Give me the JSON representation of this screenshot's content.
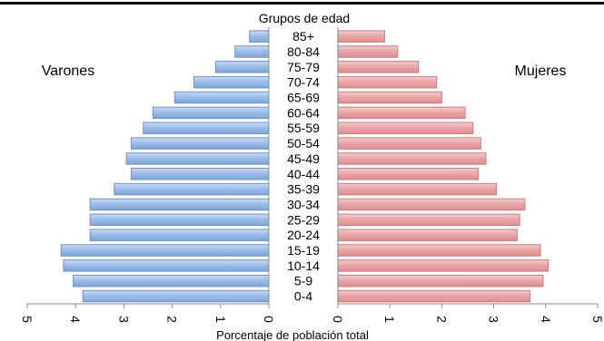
{
  "chart_data": {
    "type": "bar",
    "title": "Grupos de edad",
    "xlabel": "Porcentaje de población total",
    "age_groups": [
      "0-4",
      "5-9",
      "10-14",
      "15-19",
      "20-24",
      "25-29",
      "30-34",
      "35-39",
      "40-44",
      "45-49",
      "50-54",
      "55-59",
      "60-64",
      "65-69",
      "70-74",
      "75-79",
      "80-84",
      "85+"
    ],
    "series": [
      {
        "name": "Varones",
        "side": "left",
        "color": "#8fb4e3",
        "values": [
          3.85,
          4.05,
          4.25,
          4.3,
          3.7,
          3.7,
          3.7,
          3.2,
          2.85,
          2.95,
          2.85,
          2.6,
          2.4,
          1.95,
          1.55,
          1.1,
          0.7,
          0.4
        ]
      },
      {
        "name": "Mujeres",
        "side": "right",
        "color": "#e8a0a2",
        "values": [
          3.7,
          3.95,
          4.05,
          3.9,
          3.45,
          3.5,
          3.6,
          3.05,
          2.7,
          2.85,
          2.75,
          2.6,
          2.45,
          2.0,
          1.9,
          1.55,
          1.15,
          0.9
        ]
      }
    ],
    "xlim": [
      0,
      5
    ],
    "xticks": [
      "0",
      "1",
      "2",
      "3",
      "4",
      "5"
    ],
    "grid": false
  }
}
